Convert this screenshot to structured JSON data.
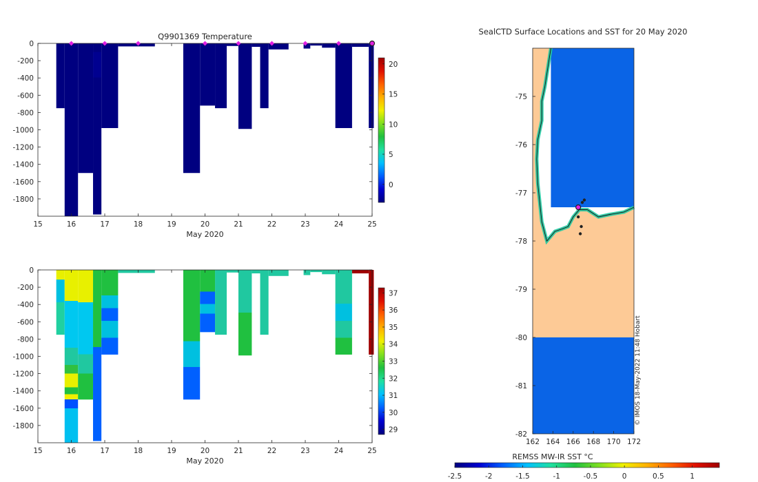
{
  "figure_title": "SealCTD Surface Locations and SST for 20 May 2020",
  "timestamp_label": "© IMOS 18-May-2022 11:48 Hobart",
  "chart_data": [
    {
      "type": "heatmap",
      "title": "Q9901369  Temperature",
      "xlabel": "May 2020",
      "ylabel": "",
      "xlim": [
        15,
        25
      ],
      "ylim": [
        -2000,
        0
      ],
      "xticks": [
        15,
        16,
        17,
        18,
        19,
        20,
        21,
        22,
        23,
        24,
        25
      ],
      "yticks": [
        0,
        -200,
        -400,
        -600,
        -800,
        -1000,
        -1200,
        -1400,
        -1600,
        -1800
      ],
      "colorbar": {
        "min": -3,
        "max": 21,
        "ticks": [
          0,
          5,
          10,
          15,
          20
        ],
        "colormap": [
          "#00007f",
          "#0000d0",
          "#0060ff",
          "#00c0ff",
          "#20e0a0",
          "#20c040",
          "#80e020",
          "#f0f000",
          "#ffb000",
          "#ff6000",
          "#e01000",
          "#a00000"
        ]
      },
      "profiles": [
        {
          "x0": 15.55,
          "x1": 15.8,
          "depth": 750,
          "fill": [
            [
              "#000080",
              1
            ]
          ]
        },
        {
          "x0": 15.8,
          "x1": 16.2,
          "depth": 2000,
          "fill": [
            [
              "#000080",
              1
            ]
          ]
        },
        {
          "x0": 16.2,
          "x1": 16.65,
          "depth": 1500,
          "fill": [
            [
              "#000080",
              1
            ]
          ]
        },
        {
          "x0": 16.65,
          "x1": 16.9,
          "depth": 1980,
          "fill": [
            [
              "#000080",
              0.05
            ],
            [
              "#000090",
              0.2
            ],
            [
              "#000080",
              1
            ]
          ]
        },
        {
          "x0": 16.9,
          "x1": 17.4,
          "depth": 980,
          "fill": [
            [
              "#000080",
              1
            ]
          ]
        },
        {
          "x0": 17.4,
          "x1": 18.5,
          "depth": 35,
          "fill": [
            [
              "#000080",
              1
            ]
          ]
        },
        {
          "x0": 19.35,
          "x1": 19.85,
          "depth": 1500,
          "fill": [
            [
              "#000080",
              1
            ]
          ]
        },
        {
          "x0": 19.85,
          "x1": 20.3,
          "depth": 720,
          "fill": [
            [
              "#000080",
              1
            ]
          ]
        },
        {
          "x0": 20.3,
          "x1": 20.65,
          "depth": 750,
          "fill": [
            [
              "#000080",
              1
            ]
          ]
        },
        {
          "x0": 20.65,
          "x1": 21.0,
          "depth": 30,
          "fill": [
            [
              "#000080",
              1
            ]
          ]
        },
        {
          "x0": 21.0,
          "x1": 21.4,
          "depth": 990,
          "fill": [
            [
              "#000080",
              1
            ]
          ]
        },
        {
          "x0": 21.4,
          "x1": 21.65,
          "depth": 40,
          "fill": [
            [
              "#000080",
              1
            ]
          ]
        },
        {
          "x0": 21.65,
          "x1": 21.9,
          "depth": 750,
          "fill": [
            [
              "#000080",
              1
            ]
          ]
        },
        {
          "x0": 21.9,
          "x1": 22.5,
          "depth": 70,
          "fill": [
            [
              "#000080",
              1
            ]
          ]
        },
        {
          "x0": 22.95,
          "x1": 23.15,
          "depth": 60,
          "fill": [
            [
              "#000080",
              1
            ]
          ]
        },
        {
          "x0": 23.15,
          "x1": 23.5,
          "depth": 25,
          "fill": [
            [
              "#000080",
              1
            ]
          ]
        },
        {
          "x0": 23.5,
          "x1": 23.9,
          "depth": 50,
          "fill": [
            [
              "#000080",
              1
            ]
          ]
        },
        {
          "x0": 23.9,
          "x1": 24.4,
          "depth": 980,
          "fill": [
            [
              "#000080",
              1
            ]
          ]
        },
        {
          "x0": 24.4,
          "x1": 24.9,
          "depth": 40,
          "fill": [
            [
              "#000080",
              1
            ]
          ]
        },
        {
          "x0": 24.9,
          "x1": 25.05,
          "depth": 980,
          "fill": [
            [
              "#000080",
              1
            ]
          ]
        }
      ],
      "surface_markers": [
        16,
        17,
        18,
        20,
        21,
        22,
        23,
        24
      ],
      "current_marker": 25
    },
    {
      "type": "heatmap",
      "title": "",
      "xlabel": "May 2020",
      "ylabel": "",
      "xlim": [
        15,
        25
      ],
      "ylim": [
        -2000,
        0
      ],
      "xticks": [
        15,
        16,
        17,
        18,
        19,
        20,
        21,
        22,
        23,
        24,
        25
      ],
      "yticks": [
        0,
        -200,
        -400,
        -600,
        -800,
        -1000,
        -1200,
        -1400,
        -1600,
        -1800
      ],
      "colorbar": {
        "min": 28.7,
        "max": 37.3,
        "ticks": [
          29,
          30,
          31,
          32,
          33,
          34,
          35,
          36,
          37
        ],
        "colormap": [
          "#00007f",
          "#0000d0",
          "#0060ff",
          "#00c0ff",
          "#20e0a0",
          "#20c040",
          "#80e020",
          "#f0f000",
          "#ffb000",
          "#ff6000",
          "#e01000",
          "#a00000"
        ]
      },
      "profiles": [
        {
          "x0": 15.55,
          "x1": 15.8,
          "depth": 750,
          "fill": [
            [
              "#e8f000",
              0.15
            ],
            [
              "#00c0e0",
              0.5
            ],
            [
              "#20d0a0",
              1
            ]
          ]
        },
        {
          "x0": 15.8,
          "x1": 16.2,
          "depth": 2000,
          "fill": [
            [
              "#e8f000",
              0.18
            ],
            [
              "#00c8f0",
              0.45
            ],
            [
              "#20c8a0",
              0.55
            ],
            [
              "#30c040",
              0.6
            ],
            [
              "#e8f000",
              0.68
            ],
            [
              "#20c040",
              0.72
            ],
            [
              "#f0f000",
              0.75
            ],
            [
              "#0050ff",
              0.8
            ],
            [
              "#00c0f0",
              1
            ]
          ]
        },
        {
          "x0": 16.2,
          "x1": 16.65,
          "depth": 1500,
          "fill": [
            [
              "#e8f000",
              0.25
            ],
            [
              "#00c8f0",
              0.65
            ],
            [
              "#20c8a0",
              0.8
            ],
            [
              "#20c040",
              1
            ]
          ]
        },
        {
          "x0": 16.65,
          "x1": 16.9,
          "depth": 1980,
          "fill": [
            [
              "#20c040",
              0.45
            ],
            [
              "#0060ff",
              1
            ]
          ]
        },
        {
          "x0": 16.9,
          "x1": 17.4,
          "depth": 980,
          "fill": [
            [
              "#20c040",
              0.3
            ],
            [
              "#00c0e0",
              0.45
            ],
            [
              "#0060ff",
              0.6
            ],
            [
              "#00c0e0",
              0.8
            ],
            [
              "#0060ff",
              1
            ]
          ]
        },
        {
          "x0": 17.4,
          "x1": 18.5,
          "depth": 35,
          "fill": [
            [
              "#20c8a0",
              1
            ]
          ]
        },
        {
          "x0": 19.35,
          "x1": 19.85,
          "depth": 1500,
          "fill": [
            [
              "#20c040",
              0.55
            ],
            [
              "#00c0e0",
              0.75
            ],
            [
              "#0060ff",
              1
            ]
          ]
        },
        {
          "x0": 19.85,
          "x1": 20.3,
          "depth": 720,
          "fill": [
            [
              "#20c040",
              0.35
            ],
            [
              "#0060ff",
              0.55
            ],
            [
              "#00c0e0",
              0.7
            ],
            [
              "#0060ff",
              1
            ]
          ]
        },
        {
          "x0": 20.3,
          "x1": 20.65,
          "depth": 750,
          "fill": [
            [
              "#20c8a0",
              1
            ]
          ]
        },
        {
          "x0": 20.65,
          "x1": 21.0,
          "depth": 30,
          "fill": [
            [
              "#20c8a0",
              1
            ]
          ]
        },
        {
          "x0": 21.0,
          "x1": 21.4,
          "depth": 990,
          "fill": [
            [
              "#20c8a0",
              0.5
            ],
            [
              "#20c040",
              1
            ]
          ]
        },
        {
          "x0": 21.4,
          "x1": 21.65,
          "depth": 40,
          "fill": [
            [
              "#20c8a0",
              1
            ]
          ]
        },
        {
          "x0": 21.65,
          "x1": 21.9,
          "depth": 750,
          "fill": [
            [
              "#20c8a0",
              1
            ]
          ]
        },
        {
          "x0": 21.9,
          "x1": 22.5,
          "depth": 70,
          "fill": [
            [
              "#20c8a0",
              1
            ]
          ]
        },
        {
          "x0": 22.95,
          "x1": 23.15,
          "depth": 60,
          "fill": [
            [
              "#20c8a0",
              1
            ]
          ]
        },
        {
          "x0": 23.15,
          "x1": 23.5,
          "depth": 25,
          "fill": [
            [
              "#20c8a0",
              1
            ]
          ]
        },
        {
          "x0": 23.5,
          "x1": 23.9,
          "depth": 50,
          "fill": [
            [
              "#20c8a0",
              1
            ]
          ]
        },
        {
          "x0": 23.9,
          "x1": 24.4,
          "depth": 980,
          "fill": [
            [
              "#20c8a0",
              0.4
            ],
            [
              "#00c0e0",
              0.6
            ],
            [
              "#20c8a0",
              0.8
            ],
            [
              "#20c040",
              1
            ]
          ]
        },
        {
          "x0": 24.4,
          "x1": 24.9,
          "depth": 40,
          "fill": [
            [
              "#a00000",
              1
            ]
          ]
        },
        {
          "x0": 24.9,
          "x1": 25.05,
          "depth": 980,
          "fill": [
            [
              "#a00000",
              1
            ]
          ]
        }
      ]
    },
    {
      "type": "heatmap",
      "title": "SealCTD Surface Locations and SST for 20 May 2020",
      "xlabel": "",
      "ylabel": "",
      "xlim": [
        162,
        172
      ],
      "ylim": [
        -82,
        -74
      ],
      "xticks": [
        162,
        164,
        166,
        168,
        170,
        172
      ],
      "yticks": [
        -75,
        -76,
        -77,
        -78,
        -79,
        -80,
        -81,
        -82
      ],
      "colorbar": {
        "label": "REMSS MW-IR SST °C",
        "min": -2.5,
        "max": 1.4,
        "ticks": [
          -2.5,
          -2,
          -1.5,
          -1,
          -0.5,
          0,
          0.5,
          1
        ],
        "colormap": [
          "#00007f",
          "#0000d0",
          "#0060ff",
          "#00c0ff",
          "#20e0a0",
          "#20c040",
          "#80e020",
          "#f0f000",
          "#ffb000",
          "#ff6000",
          "#e01000",
          "#a00000"
        ]
      },
      "colors": {
        "land": "#fdca96",
        "ocean": "#0a64e6",
        "coastal_edge": "#20c8a0",
        "marker": "#e020e0"
      },
      "land_polygon": [
        [
          162,
          -74
        ],
        [
          163.8,
          -74
        ],
        [
          163.5,
          -74.4
        ],
        [
          163.2,
          -74.8
        ],
        [
          162.9,
          -75.1
        ],
        [
          162.9,
          -75.5
        ],
        [
          162.5,
          -75.9
        ],
        [
          162.4,
          -76.3
        ],
        [
          162.5,
          -76.8
        ],
        [
          162.7,
          -77.2
        ],
        [
          162.9,
          -77.6
        ],
        [
          163.4,
          -78.0
        ],
        [
          164.2,
          -77.8
        ],
        [
          164.9,
          -77.75
        ],
        [
          165.5,
          -77.7
        ],
        [
          166.0,
          -77.5
        ],
        [
          166.6,
          -77.35
        ],
        [
          167.4,
          -77.35
        ],
        [
          168.5,
          -77.5
        ],
        [
          169.6,
          -77.45
        ],
        [
          171,
          -77.4
        ],
        [
          172,
          -77.3
        ],
        [
          172,
          -80
        ],
        [
          162,
          -80
        ]
      ],
      "coast_line": [
        [
          163.8,
          -74
        ],
        [
          163.5,
          -74.4
        ],
        [
          163.2,
          -74.8
        ],
        [
          162.9,
          -75.1
        ],
        [
          162.9,
          -75.5
        ],
        [
          162.5,
          -75.9
        ],
        [
          162.4,
          -76.3
        ],
        [
          162.5,
          -76.8
        ],
        [
          162.7,
          -77.2
        ],
        [
          162.9,
          -77.6
        ],
        [
          163.4,
          -78.0
        ],
        [
          164.2,
          -77.8
        ],
        [
          164.9,
          -77.75
        ],
        [
          165.5,
          -77.7
        ],
        [
          166.0,
          -77.5
        ],
        [
          166.6,
          -77.35
        ],
        [
          167.4,
          -77.35
        ],
        [
          168.5,
          -77.5
        ],
        [
          169.6,
          -77.45
        ],
        [
          171,
          -77.4
        ],
        [
          172,
          -77.3
        ]
      ],
      "ocean_boxes": [
        [
          163.8,
          172,
          -74,
          -77.3
        ],
        [
          162,
          172,
          -80,
          -82
        ]
      ],
      "track_points": [
        [
          166.6,
          -77.3
        ],
        [
          166.9,
          -77.2
        ],
        [
          167.1,
          -77.15
        ],
        [
          166.5,
          -77.5
        ],
        [
          166.8,
          -77.7
        ],
        [
          166.7,
          -77.85
        ]
      ],
      "current_position": [
        166.5,
        -77.3
      ]
    }
  ]
}
